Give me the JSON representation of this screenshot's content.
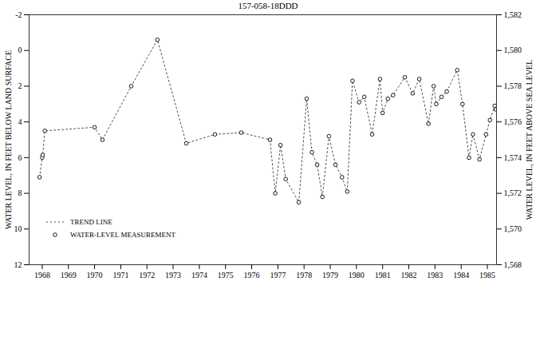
{
  "chart_data": {
    "type": "line",
    "title": "157-058-18DDD",
    "y_label": "WATER LEVEL, IN FEET BELOW LAND SURFACE",
    "y2_label": "WATER LEVEL, IN FEET ABOVE SEA LEVEL",
    "x": [
      1967.9,
      1968.0,
      1968.02,
      1968.1,
      1970.0,
      1970.3,
      1971.4,
      1972.4,
      1973.5,
      1974.6,
      1975.6,
      1976.7,
      1976.9,
      1977.1,
      1977.3,
      1977.8,
      1978.1,
      1978.3,
      1978.5,
      1978.7,
      1978.95,
      1979.2,
      1979.45,
      1979.65,
      1979.85,
      1980.1,
      1980.3,
      1980.6,
      1980.9,
      1981.0,
      1981.2,
      1981.4,
      1981.85,
      1982.15,
      1982.4,
      1982.75,
      1982.95,
      1983.05,
      1983.25,
      1983.45,
      1983.85,
      1984.05,
      1984.3,
      1984.45,
      1984.7,
      1984.95,
      1985.1,
      1985.28,
      1985.32
    ],
    "series": [
      {
        "name": "TREND LINE",
        "type": "line",
        "line_style": "dashed",
        "color": "#000000",
        "values": [
          7.1,
          6.0,
          5.85,
          4.5,
          4.3,
          5.0,
          2.0,
          -0.6,
          5.2,
          4.7,
          4.6,
          5.0,
          8.0,
          5.3,
          7.2,
          8.5,
          2.7,
          5.7,
          6.4,
          8.2,
          4.8,
          6.4,
          7.1,
          7.9,
          1.7,
          2.9,
          2.6,
          4.7,
          1.6,
          3.5,
          2.7,
          2.5,
          1.5,
          2.4,
          1.6,
          4.1,
          2.0,
          3.0,
          2.6,
          2.3,
          1.1,
          3.0,
          6.0,
          4.7,
          6.1,
          4.7,
          3.9,
          3.1,
          3.3
        ]
      },
      {
        "name": "WATER-LEVEL MEASUREMENT",
        "type": "scatter",
        "marker": "circle",
        "color": "#000000",
        "values": [
          7.1,
          6.0,
          5.85,
          4.5,
          4.3,
          5.0,
          2.0,
          -0.6,
          5.2,
          4.7,
          4.6,
          5.0,
          8.0,
          5.3,
          7.2,
          8.5,
          2.7,
          5.7,
          6.4,
          8.2,
          4.8,
          6.4,
          7.1,
          7.9,
          1.7,
          2.9,
          2.6,
          4.7,
          1.6,
          3.5,
          2.7,
          2.5,
          1.5,
          2.4,
          1.6,
          4.1,
          2.0,
          3.0,
          2.6,
          2.3,
          1.1,
          3.0,
          6.0,
          4.7,
          6.1,
          4.7,
          3.9,
          3.1,
          3.3
        ]
      }
    ],
    "xlim": [
      1967.5,
      1985.35
    ],
    "xticks": [
      1968,
      1969,
      1970,
      1971,
      1972,
      1973,
      1974,
      1975,
      1976,
      1977,
      1978,
      1979,
      1980,
      1981,
      1982,
      1983,
      1984,
      1985
    ],
    "ylim": [
      -2,
      12
    ],
    "yticks": [
      -2,
      0,
      2,
      4,
      6,
      8,
      10,
      12
    ],
    "y2lim": [
      1568,
      1582
    ],
    "y2ticks": [
      {
        "value": 1568,
        "label": "1,568"
      },
      {
        "value": 1570,
        "label": "1,570"
      },
      {
        "value": 1572,
        "label": "1,572"
      },
      {
        "value": 1574,
        "label": "1,574"
      },
      {
        "value": 1576,
        "label": "1,576"
      },
      {
        "value": 1578,
        "label": "1,578"
      },
      {
        "value": 1580,
        "label": "1,580"
      },
      {
        "value": 1582,
        "label": "1,582"
      }
    ],
    "grid": false,
    "legend": "lower left"
  }
}
